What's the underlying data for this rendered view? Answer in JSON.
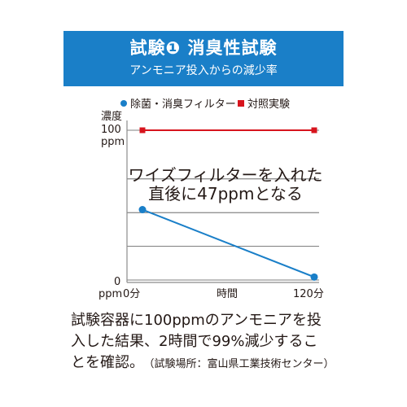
{
  "header": {
    "title": "試験❶ 消臭性試験",
    "subtitle": "アンモニア投入からの減少率",
    "background_color": "#1a7fc8"
  },
  "legend": [
    {
      "label": "除菌・消臭フィルター",
      "color": "#1a7fc8",
      "marker": "circle"
    },
    {
      "label": "対照実験",
      "color": "#d7141d",
      "marker": "square"
    }
  ],
  "chart_data": {
    "type": "line",
    "ylabel": "濃度",
    "xlabel": "時間",
    "y_tick_labels": [
      {
        "value": 100,
        "line1": "100",
        "line2": "ppm"
      },
      {
        "value": 0,
        "line1": "0",
        "line2": "ppm"
      }
    ],
    "x_tick_labels": [
      {
        "value": 0,
        "label": "0分"
      },
      {
        "value": 120,
        "label": "120分"
      }
    ],
    "xlim": [
      0,
      120
    ],
    "ylim": [
      0,
      100
    ],
    "gridlines_y": [
      0,
      22.5,
      45,
      67.5,
      100
    ],
    "series": [
      {
        "name": "除菌・消臭フィルター",
        "color": "#1a7fc8",
        "marker": "circle",
        "x": [
          0,
          120
        ],
        "y": [
          47,
          2
        ]
      },
      {
        "name": "対照実験",
        "color": "#d7141d",
        "marker": "square",
        "x": [
          0,
          120
        ],
        "y": [
          100,
          100
        ]
      }
    ],
    "annotation": {
      "line1": "ワイズフィルターを入れた",
      "line2": "直後に47ppmとなる"
    }
  },
  "caption": {
    "line1": "試験容器に100ppmのアンモニアを投",
    "line2": "入した結果、2時間で99%減少するこ",
    "line3": "とを確認。",
    "source": "（試験場所：富山県工業技術センター）"
  }
}
